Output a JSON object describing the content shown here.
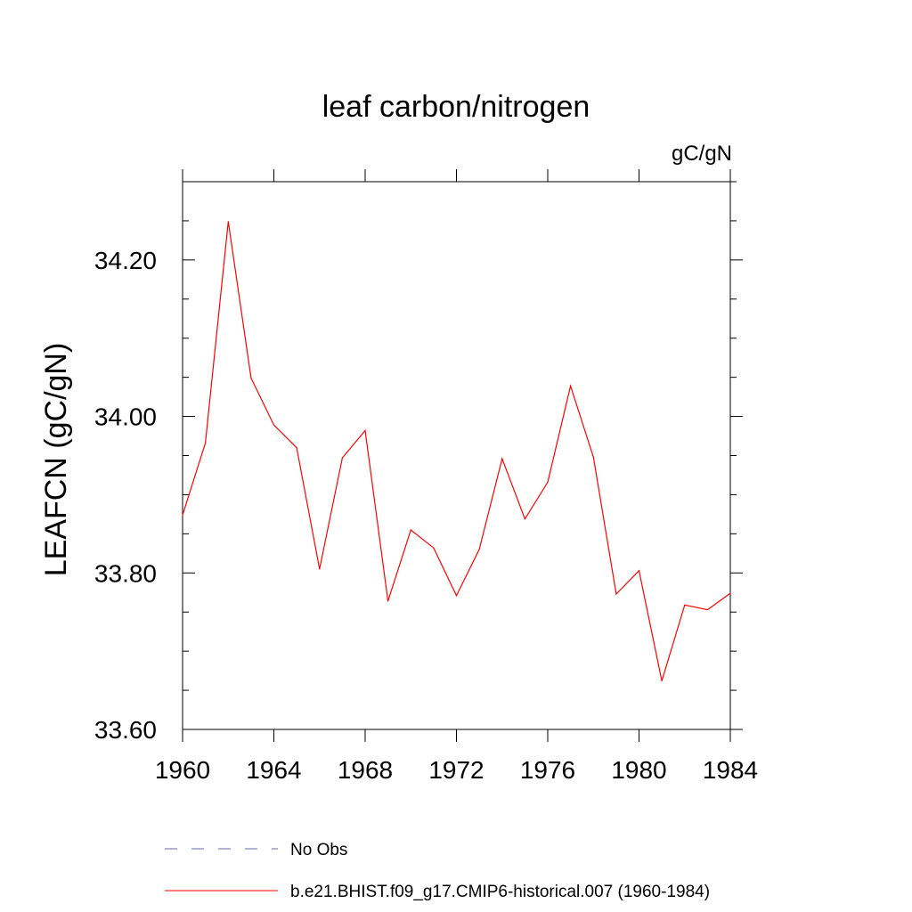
{
  "chart_data": {
    "type": "line",
    "title": "leaf carbon/nitrogen",
    "units_label": "gC/gN",
    "ylabel": "LEAFCN  (gC/gN)",
    "xlabel": "",
    "xlim": [
      1960,
      1984
    ],
    "ylim": [
      33.6,
      34.3
    ],
    "x_ticks": [
      1960,
      1964,
      1968,
      1972,
      1976,
      1980,
      1984
    ],
    "x_tick_labels": [
      "1960",
      "1964",
      "1968",
      "1972",
      "1976",
      "1980",
      "1984"
    ],
    "y_ticks": [
      33.6,
      33.8,
      34.0,
      34.2
    ],
    "y_tick_labels": [
      "33.60",
      "33.80",
      "34.00",
      "34.20"
    ],
    "x": [
      1960,
      1961,
      1962,
      1963,
      1964,
      1965,
      1966,
      1967,
      1968,
      1969,
      1970,
      1971,
      1972,
      1973,
      1974,
      1975,
      1976,
      1977,
      1978,
      1979,
      1980,
      1981,
      1982,
      1983,
      1984
    ],
    "series": [
      {
        "name": "b.e21.BHIST.f09_g17.CMIP6-historical.007 (1960-1984)",
        "color": "#ff0000",
        "dash": "solid",
        "values": [
          33.874,
          33.966,
          34.249,
          34.049,
          33.989,
          33.96,
          33.805,
          33.947,
          33.982,
          33.764,
          33.855,
          33.832,
          33.771,
          33.83,
          33.946,
          33.869,
          33.916,
          34.039,
          33.948,
          33.773,
          33.803,
          33.662,
          33.759,
          33.753,
          33.774
        ]
      }
    ],
    "legend": [
      {
        "label": "No Obs",
        "color": "#6666aa",
        "dash": "dashed"
      },
      {
        "label": "b.e21.BHIST.f09_g17.CMIP6-historical.007 (1960-1984)",
        "color": "#ff0000",
        "dash": "solid"
      }
    ],
    "legend_position": "bottom"
  }
}
